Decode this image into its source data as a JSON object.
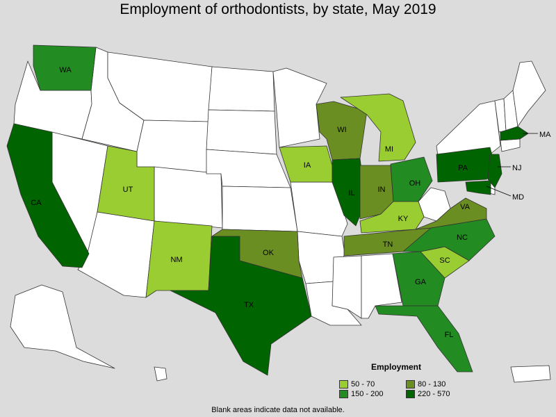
{
  "title": "Employment of orthodontists, by state, May 2019",
  "legend": {
    "title": "Employment",
    "items": [
      {
        "label": "50 - 70",
        "color": "#9acd32"
      },
      {
        "label": "80 - 130",
        "color": "#6b8e23"
      },
      {
        "label": "150 - 200",
        "color": "#228b22"
      },
      {
        "label": "220 - 570",
        "color": "#006400"
      }
    ]
  },
  "footnote": "Blank areas indicate data not available.",
  "colors": {
    "background": "#dcdcdc",
    "no_data": "#ffffff",
    "border": "#333333"
  },
  "states": [
    {
      "abbr": "WA",
      "range": "150 - 200"
    },
    {
      "abbr": "CA",
      "range": "220 - 570"
    },
    {
      "abbr": "UT",
      "range": "50 - 70"
    },
    {
      "abbr": "NM",
      "range": "50 - 70"
    },
    {
      "abbr": "TX",
      "range": "220 - 570"
    },
    {
      "abbr": "OK",
      "range": "80 - 130"
    },
    {
      "abbr": "IA",
      "range": "50 - 70"
    },
    {
      "abbr": "WI",
      "range": "80 - 130"
    },
    {
      "abbr": "IL",
      "range": "220 - 570"
    },
    {
      "abbr": "MI",
      "range": "50 - 70"
    },
    {
      "abbr": "IN",
      "range": "80 - 130"
    },
    {
      "abbr": "OH",
      "range": "150 - 200"
    },
    {
      "abbr": "KY",
      "range": "50 - 70"
    },
    {
      "abbr": "TN",
      "range": "80 - 130"
    },
    {
      "abbr": "GA",
      "range": "150 - 200"
    },
    {
      "abbr": "FL",
      "range": "150 - 200"
    },
    {
      "abbr": "SC",
      "range": "50 - 70"
    },
    {
      "abbr": "NC",
      "range": "150 - 200"
    },
    {
      "abbr": "VA",
      "range": "80 - 130"
    },
    {
      "abbr": "PA",
      "range": "220 - 570"
    },
    {
      "abbr": "NJ",
      "range": "220 - 570"
    },
    {
      "abbr": "MD",
      "range": "220 - 570"
    },
    {
      "abbr": "MA",
      "range": "220 - 570"
    }
  ]
}
